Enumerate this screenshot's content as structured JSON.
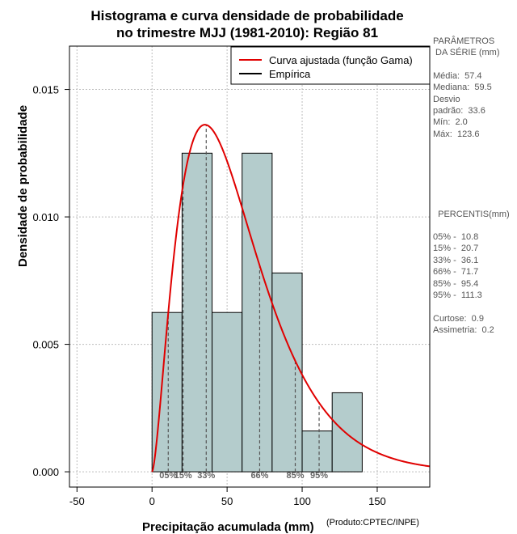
{
  "chart_data": {
    "type": "bar",
    "title_line1": "Histograma e curva densidade de probabilidade",
    "title_line2": "no trimestre MJJ (1981-2010): Região 81",
    "xlabel": "Precipitação acumulada (mm)",
    "ylabel": "Densidade de probabilidade",
    "credit": "(Produto:CPTEC/INPE)",
    "xlim": [
      -55,
      185
    ],
    "ylim": [
      -0.0006,
      0.0167
    ],
    "x_ticks": [
      -50,
      0,
      50,
      100,
      150
    ],
    "y_ticks": [
      {
        "value": 0.0,
        "label": "0.000"
      },
      {
        "value": 0.005,
        "label": "0.005"
      },
      {
        "value": 0.01,
        "label": "0.010"
      },
      {
        "value": 0.015,
        "label": "0.015"
      }
    ],
    "grid": true,
    "bins": [
      {
        "x0": 0,
        "x1": 20,
        "density": 0.00625
      },
      {
        "x0": 20,
        "x1": 40,
        "density": 0.0125
      },
      {
        "x0": 40,
        "x1": 60,
        "density": 0.00625
      },
      {
        "x0": 60,
        "x1": 80,
        "density": 0.0125
      },
      {
        "x0": 80,
        "x1": 100,
        "density": 0.0078
      },
      {
        "x0": 100,
        "x1": 120,
        "density": 0.0016
      },
      {
        "x0": 120,
        "x1": 140,
        "density": 0.0031
      }
    ],
    "gamma_fit": {
      "shape": 2.6,
      "scale": 22.0
    },
    "percentile_marks": [
      {
        "label": "05%",
        "x": 10.8
      },
      {
        "label": "15%",
        "x": 20.7
      },
      {
        "label": "33%",
        "x": 36.1
      },
      {
        "label": "66%",
        "x": 71.7
      },
      {
        "label": "85%",
        "x": 95.4
      },
      {
        "label": "95%",
        "x": 111.3
      }
    ],
    "legend": {
      "position": "top-right",
      "entries": [
        {
          "label": "Curva ajustada (função Gama)",
          "color": "#e00000"
        },
        {
          "label": "Empírica",
          "color": "#000000"
        }
      ]
    },
    "colors": {
      "bar_fill": "#b4cccc",
      "curve": "#e00000",
      "grid": "#bdbdbd",
      "percentile": "#555555"
    }
  },
  "side_panel": {
    "params_title_1": "PARÂMETROS",
    "params_title_2": " DA SÉRIE (mm)",
    "media": "Média:  57.4",
    "mediana": "Mediana:  59.5",
    "desvio_1": "Desvio",
    "desvio_2": "padrão:  33.6",
    "min": "Mín:  2.0",
    "max": "Máx:  123.6",
    "percentis_title": "  PERCENTIS(mm)",
    "p05": "05% -  10.8",
    "p15": "15% -  20.7",
    "p33": "33% -  36.1",
    "p66": "66% -  71.7",
    "p85": "85% -  95.4",
    "p95": "95% -  111.3",
    "curtose": "Curtose:  0.9",
    "assimetria": "Assimetria:  0.2"
  }
}
